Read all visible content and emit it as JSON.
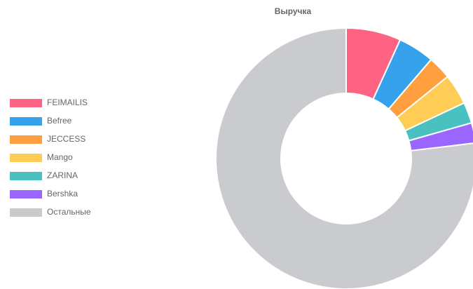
{
  "chart_data": {
    "type": "doughnut",
    "title": "Выручка",
    "categories": [
      "FEIMAILIS",
      "Befree",
      "JECCESS",
      "Mango",
      "ZARINA",
      "Bershka",
      "Остальные"
    ],
    "values": [
      6.8,
      4.5,
      2.9,
      3.8,
      2.6,
      2.5,
      76.9
    ],
    "colors": [
      "#ff6384",
      "#36a2eb",
      "#ff9f40",
      "#ffcd56",
      "#4bc0c0",
      "#9966ff",
      "#c9cbcf"
    ],
    "legend": "left"
  }
}
